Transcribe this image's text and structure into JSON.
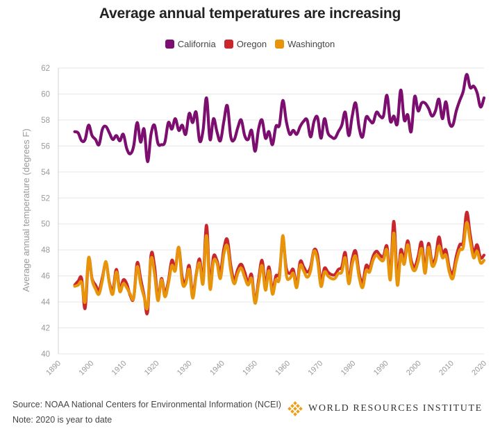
{
  "title": "Average annual temperatures are increasing",
  "legend": [
    {
      "label": "California",
      "color": "#7b0e6e"
    },
    {
      "label": "Oregon",
      "color": "#c8282d"
    },
    {
      "label": "Washington",
      "color": "#e8940b"
    }
  ],
  "footer": {
    "source": "Source: NOAA National Centers for Environmental Information (NCEI)",
    "note": "Note: 2020 is year to date",
    "logo_text": "WORLD RESOURCES INSTITUTE"
  },
  "chart_data": {
    "type": "line",
    "title": "Average annual temperatures are increasing",
    "xlabel": "",
    "ylabel": "Average annual temperature (degrees F)",
    "xlim": [
      1890,
      2020
    ],
    "ylim": [
      40,
      62
    ],
    "xticks": [
      1890,
      1900,
      1910,
      1920,
      1930,
      1940,
      1950,
      1960,
      1970,
      1980,
      1990,
      2000,
      2010,
      2020
    ],
    "yticks": [
      40,
      42,
      44,
      46,
      48,
      50,
      52,
      54,
      56,
      58,
      60,
      62
    ],
    "grid": true,
    "legend_position": "top-center",
    "x_start": 1895,
    "x_end": 2020,
    "series": [
      {
        "name": "California",
        "color": "#7b0e6e",
        "values": [
          57.1,
          57.0,
          56.4,
          56.5,
          57.6,
          56.8,
          56.5,
          56.1,
          57.3,
          57.5,
          57.0,
          56.5,
          56.8,
          56.4,
          56.9,
          55.8,
          55.4,
          56.0,
          57.8,
          56.3,
          57.3,
          54.8,
          56.9,
          57.6,
          56.2,
          56.1,
          56.3,
          57.8,
          57.3,
          58.1,
          57.2,
          57.6,
          56.9,
          58.5,
          57.8,
          58.6,
          56.4,
          57.2,
          59.7,
          56.5,
          58.1,
          57.1,
          56.4,
          57.9,
          59.1,
          56.7,
          56.5,
          57.4,
          58.0,
          56.8,
          56.5,
          57.2,
          55.6,
          57.3,
          58.0,
          56.6,
          57.1,
          56.1,
          57.5,
          57.6,
          59.5,
          57.9,
          56.9,
          57.2,
          56.9,
          57.5,
          57.9,
          58.0,
          56.7,
          57.9,
          58.2,
          56.6,
          58.1,
          57.0,
          56.7,
          56.6,
          57.1,
          57.6,
          58.6,
          56.8,
          58.3,
          59.3,
          57.4,
          56.7,
          58.2,
          58.0,
          57.8,
          58.6,
          58.3,
          58.3,
          59.9,
          57.9,
          58.3,
          57.7,
          60.3,
          58.0,
          58.4,
          57.1,
          59.8,
          58.7,
          59.3,
          59.3,
          58.9,
          58.3,
          58.7,
          59.6,
          58.1,
          59.4,
          57.8,
          57.6,
          58.7,
          59.5,
          60.2,
          61.5,
          60.5,
          60.6,
          60.1,
          59.0,
          59.7
        ]
      },
      {
        "name": "Oregon",
        "color": "#c8282d",
        "values": [
          45.3,
          45.6,
          45.8,
          43.5,
          47.3,
          45.8,
          45.3,
          44.9,
          45.9,
          47.0,
          45.5,
          44.9,
          46.5,
          45.0,
          45.7,
          45.4,
          44.5,
          44.3,
          47.0,
          45.8,
          44.5,
          43.2,
          47.6,
          46.8,
          44.3,
          45.8,
          44.7,
          45.6,
          47.2,
          46.6,
          48.2,
          45.9,
          45.6,
          46.8,
          44.6,
          46.1,
          47.3,
          45.7,
          49.9,
          45.4,
          47.5,
          47.2,
          46.3,
          48.1,
          48.8,
          46.8,
          45.7,
          46.5,
          46.9,
          46.3,
          45.5,
          46.1,
          44.0,
          45.7,
          47.2,
          45.3,
          46.7,
          44.9,
          46.0,
          46.2,
          48.7,
          46.6,
          46.2,
          46.5,
          45.3,
          47.1,
          46.7,
          46.3,
          46.7,
          48.0,
          47.6,
          45.6,
          46.6,
          46.3,
          46.1,
          46.1,
          46.5,
          46.7,
          47.8,
          45.7,
          47.3,
          47.9,
          46.2,
          45.5,
          46.8,
          46.6,
          47.5,
          47.9,
          47.6,
          47.5,
          48.3,
          46.1,
          50.2,
          45.8,
          48.0,
          47.3,
          48.7,
          47.2,
          46.7,
          47.5,
          48.6,
          46.6,
          48.5,
          47.1,
          47.4,
          49.0,
          47.7,
          48.0,
          46.6,
          46.2,
          47.5,
          48.4,
          48.6,
          50.9,
          49.2,
          47.8,
          48.4,
          47.4,
          47.6
        ]
      },
      {
        "name": "Washington",
        "color": "#e8940b",
        "values": [
          45.2,
          45.3,
          45.5,
          44.0,
          47.4,
          45.7,
          45.0,
          44.6,
          45.7,
          47.1,
          45.4,
          44.6,
          46.3,
          44.8,
          45.4,
          45.1,
          44.6,
          44.3,
          46.7,
          45.4,
          44.4,
          43.6,
          47.3,
          46.2,
          44.1,
          45.7,
          44.4,
          45.4,
          46.8,
          46.4,
          48.2,
          45.5,
          45.4,
          46.5,
          44.3,
          46.0,
          47.0,
          45.4,
          49.1,
          45.0,
          47.1,
          47.0,
          45.8,
          47.7,
          48.3,
          46.4,
          45.4,
          46.2,
          46.6,
          45.9,
          45.3,
          45.8,
          43.9,
          45.4,
          46.8,
          44.9,
          46.4,
          44.6,
          45.7,
          45.8,
          49.1,
          46.1,
          45.8,
          46.2,
          45.1,
          46.8,
          46.4,
          45.9,
          46.4,
          47.9,
          47.2,
          45.2,
          46.3,
          46.0,
          45.8,
          45.8,
          46.2,
          46.3,
          47.4,
          45.4,
          46.9,
          47.5,
          45.9,
          45.1,
          46.4,
          46.3,
          47.2,
          47.6,
          47.3,
          47.2,
          48.0,
          45.7,
          49.3,
          45.3,
          47.6,
          46.9,
          48.4,
          46.9,
          46.4,
          47.1,
          48.1,
          46.2,
          48.2,
          46.8,
          47.1,
          48.3,
          47.4,
          47.6,
          46.3,
          45.8,
          47.1,
          48.0,
          48.2,
          50.1,
          48.7,
          47.4,
          47.9,
          47.0,
          47.2
        ]
      }
    ]
  }
}
